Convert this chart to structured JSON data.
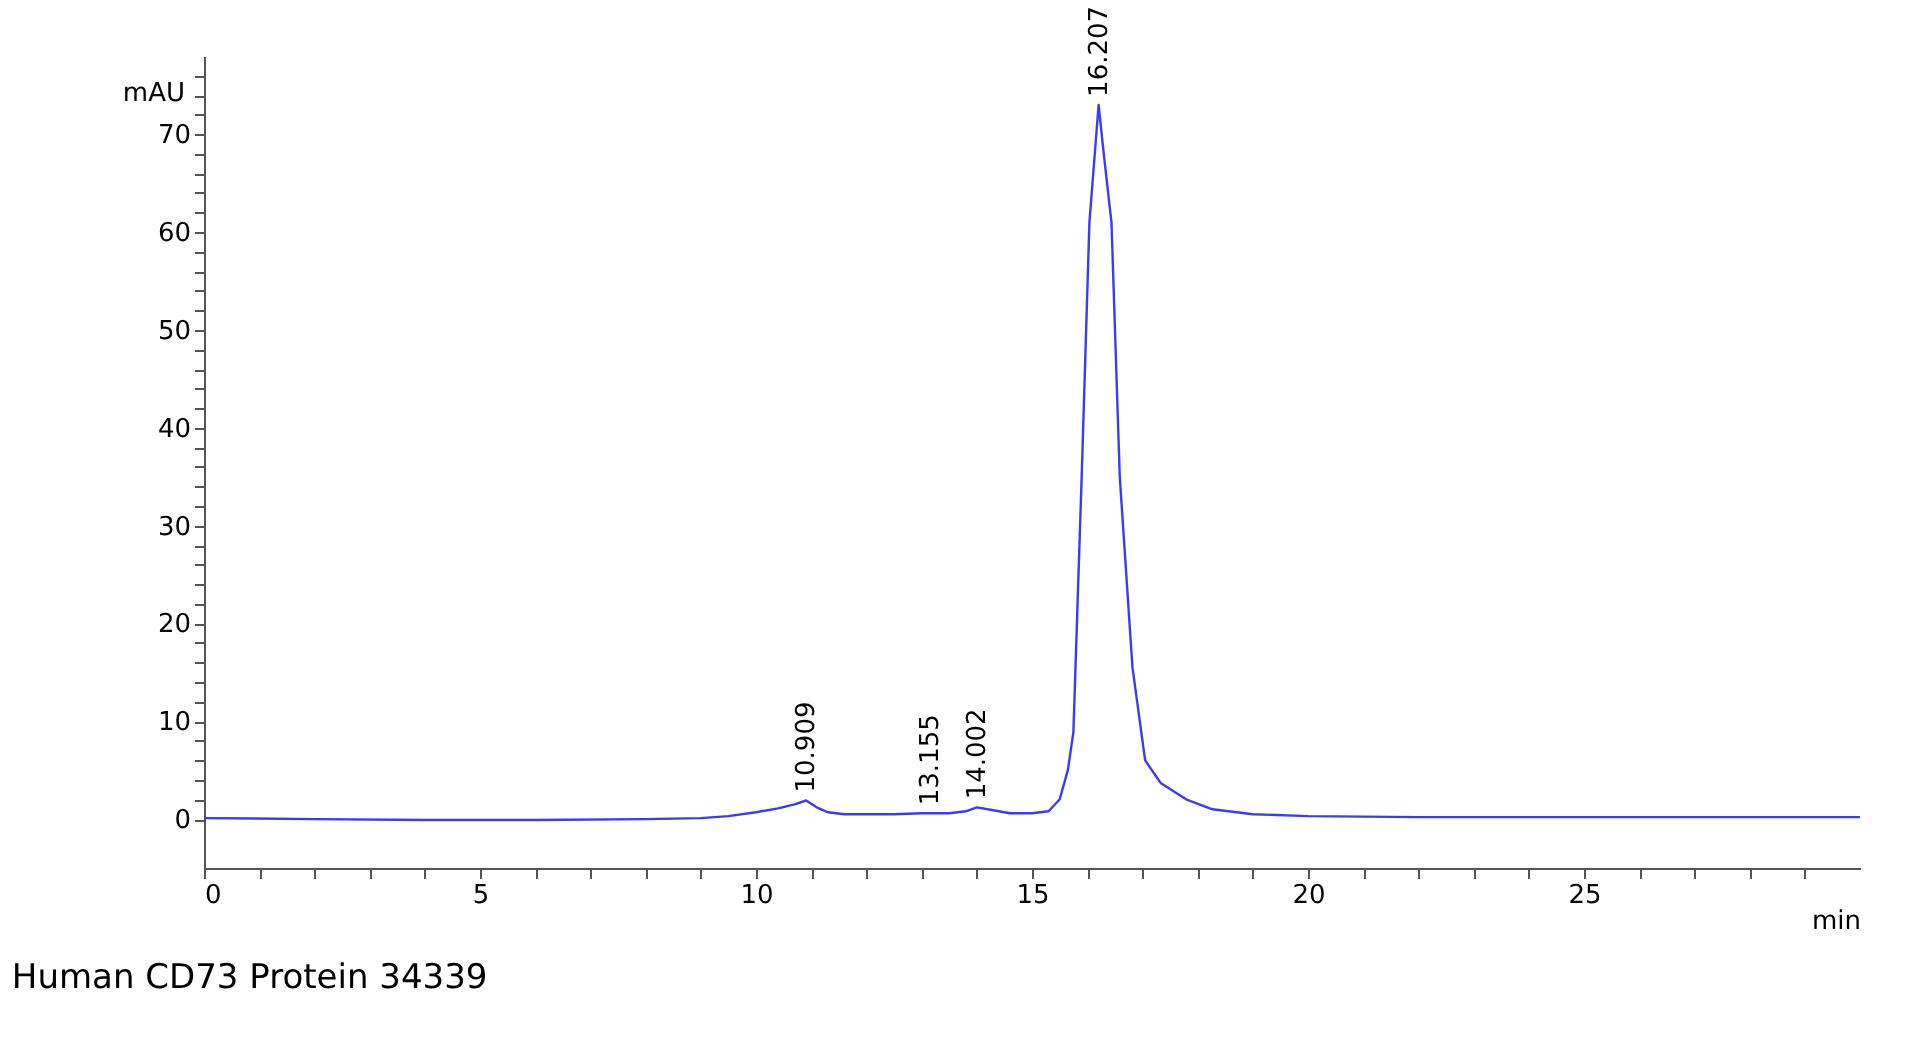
{
  "chart_data": {
    "type": "line",
    "title": "Human CD73 Protein 34339",
    "xlabel": "min",
    "ylabel": "mAU",
    "x": [
      0,
      2,
      4,
      6,
      8,
      9,
      9.5,
      10,
      10.4,
      10.7,
      10.909,
      11.1,
      11.3,
      11.6,
      12,
      12.5,
      13,
      13.155,
      13.5,
      13.8,
      14.002,
      14.3,
      14.6,
      15,
      15.3,
      15.5,
      15.65,
      15.75,
      15.9,
      16.04,
      16.207,
      16.3,
      16.44,
      16.59,
      16.82,
      17.05,
      17.33,
      17.8,
      18.27,
      19,
      20,
      22,
      25,
      28,
      30
    ],
    "series": [
      {
        "color": "#3b3bf5",
        "values": [
          0.1,
          0,
          -0.1,
          -0.1,
          0,
          0.1,
          0.3,
          0.7,
          1.1,
          1.5,
          1.9,
          1.2,
          0.7,
          0.5,
          0.5,
          0.5,
          0.6,
          0.6,
          0.6,
          0.8,
          1.2,
          0.9,
          0.6,
          0.6,
          0.8,
          2,
          5,
          8.9,
          35,
          61,
          73,
          68,
          61,
          35,
          15.5,
          6,
          3.7,
          2,
          1,
          0.5,
          0.3,
          0.2,
          0.2,
          0.2,
          0.2
        ]
      }
    ],
    "annotations": [
      {
        "text": "10.909",
        "x": 10.909,
        "y": 1.9
      },
      {
        "text": "13.155",
        "x": 13.155,
        "y": 0.6
      },
      {
        "text": "14.002",
        "x": 14.002,
        "y": 1.2
      },
      {
        "text": "16.207",
        "x": 16.207,
        "y": 73
      }
    ],
    "xlim": [
      0,
      30
    ],
    "ylim": [
      -5,
      78
    ],
    "xticks": [
      0,
      {
        "value": 1,
        "label": null
      },
      {
        "value": 2,
        "label": null
      },
      {
        "value": 3,
        "label": null
      },
      {
        "value": 4,
        "label": null
      },
      5,
      {
        "value": 6,
        "label": null
      },
      {
        "value": 7,
        "label": null
      },
      {
        "value": 8,
        "label": null
      },
      {
        "value": 9,
        "label": null
      },
      10,
      {
        "value": 11,
        "label": null
      },
      {
        "value": 12,
        "label": null
      },
      {
        "value": 13,
        "label": null
      },
      {
        "value": 14,
        "label": null
      },
      15,
      {
        "value": 16,
        "label": null
      },
      {
        "value": 17,
        "label": null
      },
      {
        "value": 18,
        "label": null
      },
      {
        "value": 19,
        "label": null
      },
      20,
      {
        "value": 21,
        "label": null
      },
      {
        "value": 22,
        "label": null
      },
      {
        "value": 23,
        "label": null
      },
      {
        "value": 24,
        "label": null
      },
      25,
      {
        "value": 26,
        "label": null
      },
      {
        "value": 27,
        "label": null
      },
      {
        "value": 28,
        "label": null
      },
      {
        "value": 29,
        "label": null
      }
    ],
    "yticks": [
      0,
      {
        "value": 2,
        "label": null
      },
      {
        "value": 4,
        "label": null
      },
      {
        "value": 6,
        "label": null
      },
      {
        "value": 8,
        "label": null
      },
      10,
      {
        "value": 12,
        "label": null
      },
      {
        "value": 14,
        "label": null
      },
      {
        "value": 16,
        "label": null
      },
      {
        "value": 18,
        "label": null
      },
      20,
      {
        "value": 22,
        "label": null
      },
      {
        "value": 24,
        "label": null
      },
      {
        "value": 26,
        "label": null
      },
      {
        "value": 28,
        "label": null
      },
      30,
      {
        "value": 32,
        "label": null
      },
      {
        "value": 34,
        "label": null
      },
      {
        "value": 36,
        "label": null
      },
      {
        "value": 38,
        "label": null
      },
      40,
      {
        "value": 42,
        "label": null
      },
      {
        "value": 44,
        "label": null
      },
      {
        "value": 46,
        "label": null
      },
      {
        "value": 48,
        "label": null
      },
      50,
      {
        "value": 52,
        "label": null
      },
      {
        "value": 54,
        "label": null
      },
      {
        "value": 56,
        "label": null
      },
      {
        "value": 58,
        "label": null
      },
      60,
      {
        "value": 62,
        "label": null
      },
      {
        "value": 64,
        "label": null
      },
      {
        "value": 66,
        "label": null
      },
      {
        "value": 68,
        "label": null
      },
      70,
      {
        "value": 72,
        "label": null
      },
      {
        "value": 74,
        "label": null
      },
      {
        "value": 76,
        "label": null
      }
    ],
    "grid": false
  }
}
